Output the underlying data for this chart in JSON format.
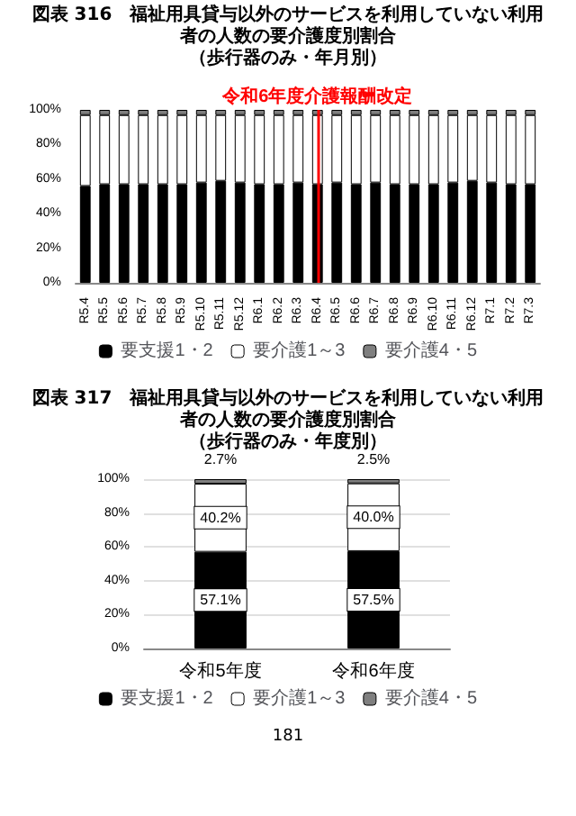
{
  "chart_data": [
    {
      "type": "bar",
      "title": "図表 316　福祉用具貸与以外のサービスを利用していない利用者の人数の要介護度別割合",
      "subtitle": "（歩行器のみ・年月別）",
      "categories": [
        "R5.4",
        "R5.5",
        "R5.6",
        "R5.7",
        "R5.8",
        "R5.9",
        "R5.10",
        "R5.11",
        "R5.12",
        "R6.1",
        "R6.2",
        "R6.3",
        "R6.4",
        "R6.5",
        "R6.6",
        "R6.7",
        "R6.8",
        "R6.9",
        "R6.10",
        "R6.11",
        "R6.12",
        "R7.1",
        "R7.2",
        "R7.3"
      ],
      "series": [
        {
          "name": "要支援1・2",
          "color": "#000000",
          "values": [
            56,
            57,
            57,
            57,
            57,
            57,
            58,
            59,
            58,
            57,
            57,
            58,
            57,
            58,
            57,
            58,
            57,
            57,
            57,
            58,
            59,
            58,
            57,
            57
          ]
        },
        {
          "name": "要介護1～3",
          "color": "#ffffff",
          "values": [
            41,
            40,
            40,
            40,
            40,
            40,
            39,
            38,
            39,
            40,
            40,
            39,
            40,
            39,
            40,
            39,
            40,
            40,
            40,
            39,
            38,
            39,
            40,
            40
          ]
        },
        {
          "name": "要介護4・5",
          "color": "#7f7f7f",
          "values": [
            3,
            3,
            3,
            3,
            3,
            3,
            3,
            3,
            3,
            3,
            3,
            3,
            3,
            3,
            3,
            3,
            3,
            3,
            3,
            3,
            3,
            3,
            3,
            3
          ]
        }
      ],
      "stacked": true,
      "ylim": [
        0,
        100
      ],
      "yticks": [
        {
          "value": 0,
          "label": "0%"
        },
        {
          "value": 20,
          "label": "20%"
        },
        {
          "value": 40,
          "label": "40%"
        },
        {
          "value": 60,
          "label": "60%"
        },
        {
          "value": 80,
          "label": "80%"
        },
        {
          "value": 100,
          "label": "100%"
        }
      ],
      "ref_lines": [
        {
          "axis": "x",
          "value": "R6.4",
          "label": "令和6年度介護報酬改定",
          "color": "#ff0000"
        }
      ],
      "grid": false,
      "legend": "bottom"
    },
    {
      "type": "bar",
      "title": "図表 317　福祉用具貸与以外のサービスを利用していない利用者の人数の要介護度別割合",
      "subtitle": "（歩行器のみ・年度別）",
      "categories": [
        "令和5年度",
        "令和6年度"
      ],
      "series": [
        {
          "name": "要支援1・2",
          "color": "#000000",
          "values": [
            57.1,
            57.5
          ],
          "value_labels": [
            "57.1%",
            "57.5%"
          ]
        },
        {
          "name": "要介護1～3",
          "color": "#ffffff",
          "values": [
            40.2,
            40.0
          ],
          "value_labels": [
            "40.2%",
            "40.0%"
          ]
        },
        {
          "name": "要介護4・5",
          "color": "#7f7f7f",
          "values": [
            2.7,
            2.5
          ],
          "value_labels": [
            "2.7%",
            "2.5%"
          ]
        }
      ],
      "stacked": true,
      "ylim": [
        0,
        100
      ],
      "yticks": [
        {
          "value": 0,
          "label": "0%"
        },
        {
          "value": 20,
          "label": "20%"
        },
        {
          "value": 40,
          "label": "40%"
        },
        {
          "value": 60,
          "label": "60%"
        },
        {
          "value": 80,
          "label": "80%"
        },
        {
          "value": 100,
          "label": "100%"
        }
      ],
      "grid": "y",
      "legend": "bottom",
      "annotations": [
        "181"
      ]
    }
  ]
}
